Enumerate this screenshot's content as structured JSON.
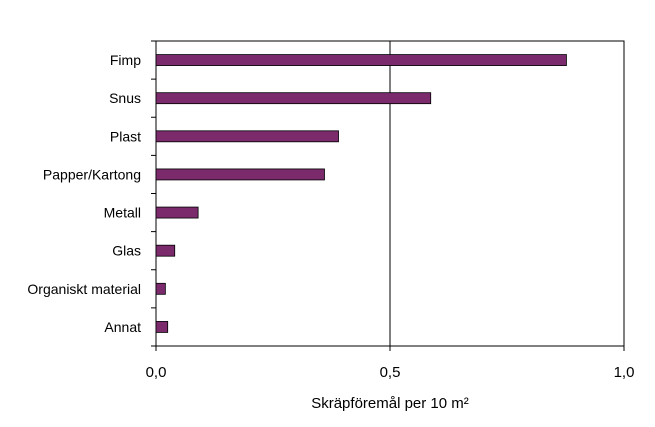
{
  "chart_data": {
    "type": "bar",
    "orientation": "horizontal",
    "categories": [
      "Fimp",
      "Snus",
      "Plast",
      "Papper/Kartong",
      "Metall",
      "Glas",
      "Organiskt material",
      "Annat"
    ],
    "values": [
      0.877,
      0.587,
      0.39,
      0.36,
      0.09,
      0.04,
      0.02,
      0.025
    ],
    "xlabel": "Skräpföremål per 10 m²",
    "xlim": [
      0,
      1
    ],
    "x_tick_labels": [
      "0,0",
      "0,5",
      "1,0"
    ],
    "x_ticks": [
      0,
      0.5,
      1
    ],
    "grid": "vertical line at 0,5",
    "legend": "none",
    "bar_color": "#7b2a6c",
    "bar_stroke": "#000000"
  }
}
